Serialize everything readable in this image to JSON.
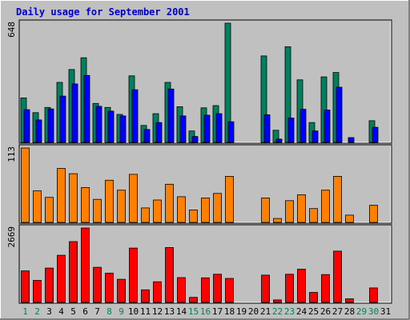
{
  "title": "Daily usage for September 2001",
  "colors": {
    "background": "#c0c0c0",
    "title": "#0000cc",
    "border_light": "#ffffff",
    "border_dark": "#808080",
    "weekday_label": "#000000",
    "weekend_label": "#00805f"
  },
  "chart_data": [
    {
      "type": "bar",
      "panel": "top",
      "ymax_label": "648",
      "ylim": [
        0,
        648
      ],
      "categories": [
        "1",
        "2",
        "3",
        "4",
        "5",
        "6",
        "7",
        "8",
        "9",
        "10",
        "11",
        "12",
        "13",
        "14",
        "15",
        "16",
        "17",
        "18",
        "19",
        "20",
        "21",
        "22",
        "23",
        "24",
        "25",
        "26",
        "27",
        "28",
        "29",
        "30",
        "31"
      ],
      "weekend_days": [
        "1",
        "2",
        "8",
        "9",
        "15",
        "16",
        "22",
        "23",
        "29",
        "30"
      ],
      "series": [
        {
          "color": "#00805f",
          "values": [
            242,
            162,
            190,
            326,
            396,
            460,
            212,
            190,
            152,
            362,
            92,
            156,
            326,
            194,
            62,
            188,
            200,
            648,
            0,
            0,
            470,
            66,
            520,
            340,
            108,
            356,
            380,
            0,
            0,
            118,
            0
          ]
        },
        {
          "color": "#0000ff",
          "values": [
            178,
            122,
            182,
            252,
            318,
            364,
            196,
            170,
            144,
            286,
            70,
            108,
            290,
            144,
            32,
            148,
            156,
            112,
            0,
            0,
            150,
            18,
            132,
            180,
            62,
            176,
            300,
            26,
            0,
            82,
            0
          ]
        }
      ]
    },
    {
      "type": "bar",
      "panel": "middle",
      "ymax_label": "113",
      "ylim": [
        0,
        113
      ],
      "series": [
        {
          "color": "#ff8000",
          "values": [
            113,
            48,
            38,
            82,
            74,
            53,
            35,
            64,
            49,
            73,
            22,
            34,
            58,
            39,
            19,
            37,
            44,
            70,
            0,
            0,
            37,
            6,
            33,
            42,
            21,
            49,
            70,
            11,
            0,
            26,
            0
          ]
        }
      ]
    },
    {
      "type": "bar",
      "panel": "bottom",
      "ymax_label": "2669",
      "ylim": [
        0,
        2669
      ],
      "series": [
        {
          "color": "#ff0000",
          "values": [
            1130,
            790,
            1230,
            1690,
            2180,
            2669,
            1260,
            1050,
            830,
            1950,
            450,
            740,
            1970,
            890,
            180,
            880,
            1010,
            860,
            0,
            0,
            980,
            90,
            1010,
            1190,
            360,
            1000,
            1840,
            130,
            0,
            520,
            0
          ]
        }
      ]
    }
  ]
}
